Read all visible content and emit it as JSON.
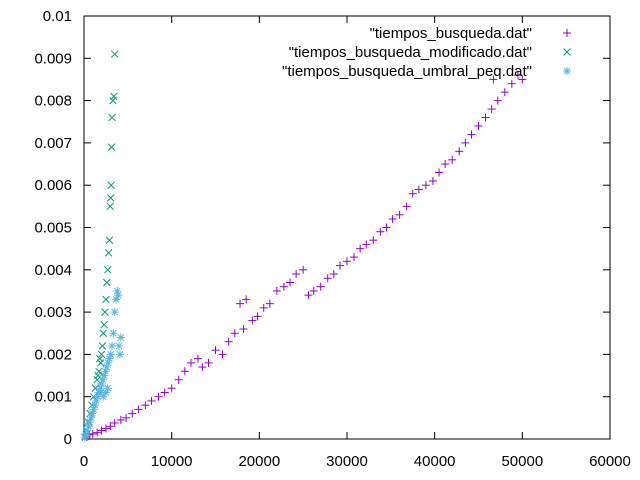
{
  "chart_data": {
    "type": "scatter",
    "title": "",
    "xlabel": "",
    "ylabel": "",
    "xlim": [
      0,
      60000
    ],
    "ylim": [
      0,
      0.01
    ],
    "grid": false,
    "legend_position": "top-right",
    "x_ticks": [
      "0",
      "10000",
      "20000",
      "30000",
      "40000",
      "50000",
      "60000"
    ],
    "x_tick_values": [
      0,
      10000,
      20000,
      30000,
      40000,
      50000,
      60000
    ],
    "y_ticks": [
      "0",
      "0.001",
      "0.002",
      "0.003",
      "0.004",
      "0.005",
      "0.006",
      "0.007",
      "0.008",
      "0.009",
      "0.01"
    ],
    "y_tick_values": [
      0,
      0.001,
      0.002,
      0.003,
      0.004,
      0.005,
      0.006,
      0.007,
      0.008,
      0.009,
      0.01
    ],
    "series": [
      {
        "name": "\"tiempos_busqueda.dat\"",
        "marker": "plus",
        "color": "#9400d3",
        "points": [
          [
            300,
            5e-05
          ],
          [
            600,
            0.0001
          ],
          [
            1000,
            0.00012
          ],
          [
            1500,
            0.00015
          ],
          [
            2000,
            0.0002
          ],
          [
            2500,
            0.00025
          ],
          [
            3000,
            0.0003
          ],
          [
            3500,
            0.00038
          ],
          [
            4200,
            0.00045
          ],
          [
            4800,
            0.0005
          ],
          [
            5500,
            0.0006
          ],
          [
            6200,
            0.0007
          ],
          [
            7000,
            0.0008
          ],
          [
            7700,
            0.0009
          ],
          [
            8500,
            0.001
          ],
          [
            9200,
            0.0011
          ],
          [
            10000,
            0.0012
          ],
          [
            10800,
            0.0014
          ],
          [
            11500,
            0.0016
          ],
          [
            12200,
            0.0018
          ],
          [
            13000,
            0.0019
          ],
          [
            13500,
            0.0017
          ],
          [
            14200,
            0.0018
          ],
          [
            15000,
            0.0021
          ],
          [
            15800,
            0.002
          ],
          [
            16500,
            0.0023
          ],
          [
            17200,
            0.0025
          ],
          [
            17800,
            0.0032
          ],
          [
            18500,
            0.0033
          ],
          [
            18200,
            0.0026
          ],
          [
            19200,
            0.0028
          ],
          [
            19800,
            0.0029
          ],
          [
            20500,
            0.0031
          ],
          [
            21200,
            0.0032
          ],
          [
            22000,
            0.0035
          ],
          [
            22800,
            0.0036
          ],
          [
            23500,
            0.0037
          ],
          [
            24200,
            0.0039
          ],
          [
            25000,
            0.004
          ],
          [
            25600,
            0.0034
          ],
          [
            26200,
            0.0035
          ],
          [
            27000,
            0.0036
          ],
          [
            27800,
            0.0038
          ],
          [
            28500,
            0.0039
          ],
          [
            29200,
            0.0041
          ],
          [
            30000,
            0.0042
          ],
          [
            30800,
            0.0043
          ],
          [
            31500,
            0.0045
          ],
          [
            32200,
            0.0046
          ],
          [
            33000,
            0.0047
          ],
          [
            33800,
            0.0049
          ],
          [
            34500,
            0.005
          ],
          [
            35200,
            0.0052
          ],
          [
            36000,
            0.0053
          ],
          [
            36800,
            0.0055
          ],
          [
            37500,
            0.0058
          ],
          [
            38200,
            0.0059
          ],
          [
            39000,
            0.006
          ],
          [
            39800,
            0.0061
          ],
          [
            40500,
            0.0063
          ],
          [
            41200,
            0.0065
          ],
          [
            42000,
            0.0066
          ],
          [
            42800,
            0.0068
          ],
          [
            43500,
            0.007
          ],
          [
            44200,
            0.0072
          ],
          [
            45000,
            0.0074
          ],
          [
            45800,
            0.0076
          ],
          [
            46500,
            0.0078
          ],
          [
            47200,
            0.008
          ],
          [
            48000,
            0.0082
          ],
          [
            48800,
            0.0084
          ],
          [
            49500,
            0.0086
          ],
          [
            50000,
            0.0085
          ],
          [
            46700,
            0.0085
          ]
        ]
      },
      {
        "name": "\"tiempos_busqueda_modificado.dat\"",
        "marker": "cross",
        "color": "#009e73",
        "points": [
          [
            100,
            5e-05
          ],
          [
            300,
            0.0002
          ],
          [
            500,
            0.0004
          ],
          [
            700,
            0.0006
          ],
          [
            900,
            0.0008
          ],
          [
            1100,
            0.001
          ],
          [
            1300,
            0.0012
          ],
          [
            1500,
            0.0014
          ],
          [
            1700,
            0.0016
          ],
          [
            1900,
            0.0018
          ],
          [
            2000,
            0.002
          ],
          [
            2100,
            0.0022
          ],
          [
            2200,
            0.0025
          ],
          [
            2300,
            0.0027
          ],
          [
            2400,
            0.003
          ],
          [
            2500,
            0.0033
          ],
          [
            2600,
            0.0037
          ],
          [
            2700,
            0.004
          ],
          [
            2800,
            0.0044
          ],
          [
            2900,
            0.0047
          ],
          [
            3000,
            0.0055
          ],
          [
            3050,
            0.0057
          ],
          [
            3100,
            0.006
          ],
          [
            3150,
            0.0069
          ],
          [
            3200,
            0.0076
          ],
          [
            3300,
            0.008
          ],
          [
            3400,
            0.0081
          ],
          [
            3500,
            0.0091
          ],
          [
            1600,
            0.0015
          ],
          [
            1800,
            0.0019
          ]
        ]
      },
      {
        "name": "\"tiempos_busqueda_umbral_peq.dat\"",
        "marker": "star",
        "color": "#56b4e9",
        "points": [
          [
            100,
            3e-05
          ],
          [
            200,
            0.0001
          ],
          [
            350,
            0.0002
          ],
          [
            500,
            0.0003
          ],
          [
            650,
            0.0004
          ],
          [
            800,
            0.0005
          ],
          [
            950,
            0.0006
          ],
          [
            1100,
            0.0007
          ],
          [
            1250,
            0.0008
          ],
          [
            1400,
            0.0009
          ],
          [
            1550,
            0.001
          ],
          [
            1700,
            0.0011
          ],
          [
            1850,
            0.0012
          ],
          [
            2000,
            0.0013
          ],
          [
            2150,
            0.0014
          ],
          [
            2300,
            0.0015
          ],
          [
            2450,
            0.0016
          ],
          [
            2600,
            0.0017
          ],
          [
            2750,
            0.0018
          ],
          [
            2900,
            0.0019
          ],
          [
            3050,
            0.002
          ],
          [
            3200,
            0.0022
          ],
          [
            3350,
            0.0025
          ],
          [
            3500,
            0.003
          ],
          [
            3650,
            0.0033
          ],
          [
            3800,
            0.0035
          ],
          [
            3900,
            0.0034
          ],
          [
            4000,
            0.0022
          ],
          [
            4100,
            0.002
          ],
          [
            4200,
            0.0024
          ],
          [
            2500,
            0.0011
          ],
          [
            2700,
            0.0012
          ],
          [
            2200,
            0.001
          ],
          [
            1900,
            0.0011
          ]
        ]
      }
    ]
  }
}
